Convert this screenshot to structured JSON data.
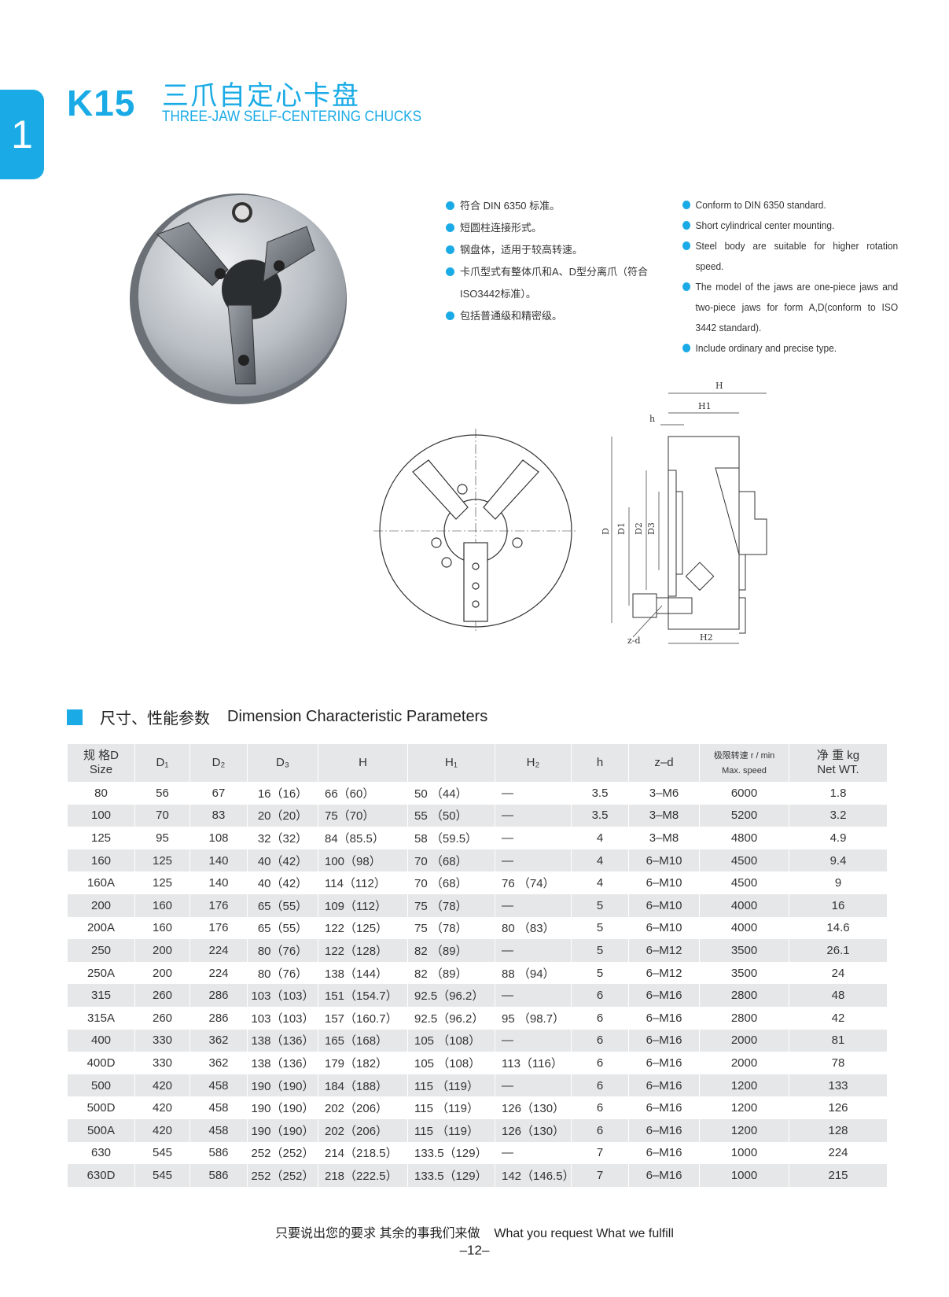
{
  "header": {
    "tab_number": "1",
    "model": "K15",
    "title_cn": "三爪自定心卡盘",
    "title_en": "THREE-JAW SELF-CENTERING CHUCKS"
  },
  "features_cn": [
    "符合 DIN 6350 标准。",
    "短圆柱连接形式。",
    "钢盘体，适用于较高转速。",
    "卡爪型式有整体爪和A、D型分离爪（符合ISO3442标准）。",
    "包括普通级和精密级。"
  ],
  "features_en": [
    "Conform to DIN 6350 standard.",
    "Short cylindrical center mounting.",
    "Steel body are suitable for higher rotation speed.",
    "The model of the jaws are one-piece jaws and two-piece jaws for form A,D(conform to ISO 3442 standard).",
    "Include ordinary and precise type."
  ],
  "drawing_labels": {
    "H": "H",
    "H1": "H1",
    "h": "h",
    "D": "D",
    "D1": "D1",
    "D2": "D2",
    "D3": "D3",
    "zd": "z-d",
    "H2": "H2"
  },
  "section": {
    "title_cn": "尺寸、性能参数",
    "title_en": "Dimension  Characteristic Parameters"
  },
  "table": {
    "headers": [
      {
        "top": "规 格D",
        "bottom": "Size"
      },
      {
        "top": "D₁"
      },
      {
        "top": "D₂"
      },
      {
        "top": "D₃"
      },
      {
        "top": "H"
      },
      {
        "top": "H₁"
      },
      {
        "top": "H₂"
      },
      {
        "top": "h"
      },
      {
        "top": "z–d"
      },
      {
        "top": "极限转速 r / min",
        "bottom": "Max. speed"
      },
      {
        "top": "净 重 kg",
        "bottom": "Net WT."
      }
    ],
    "rows": [
      [
        "80",
        "56",
        "67",
        "16（16）",
        "66（60）",
        "50 （44）",
        "—",
        "3.5",
        "3–M6",
        "6000",
        "1.8"
      ],
      [
        "100",
        "70",
        "83",
        "20（20）",
        "75（70）",
        "55 （50）",
        "—",
        "3.5",
        "3–M8",
        "5200",
        "3.2"
      ],
      [
        "125",
        "95",
        "108",
        "32（32）",
        "84（85.5）",
        "58 （59.5）",
        "—",
        "4",
        "3–M8",
        "4800",
        "4.9"
      ],
      [
        "160",
        "125",
        "140",
        "40（42）",
        "100（98）",
        "70 （68）",
        "—",
        "4",
        "6–M10",
        "4500",
        "9.4"
      ],
      [
        "160A",
        "125",
        "140",
        "40（42）",
        "114（112）",
        "70 （68）",
        "76 （74）",
        "4",
        "6–M10",
        "4500",
        "9"
      ],
      [
        "200",
        "160",
        "176",
        "65（55）",
        "109（112）",
        "75 （78）",
        "—",
        "5",
        "6–M10",
        "4000",
        "16"
      ],
      [
        "200A",
        "160",
        "176",
        "65（55）",
        "122（125）",
        "75 （78）",
        "80 （83）",
        "5",
        "6–M10",
        "4000",
        "14.6"
      ],
      [
        "250",
        "200",
        "224",
        "80（76）",
        "122（128）",
        "82 （89）",
        "—",
        "5",
        "6–M12",
        "3500",
        "26.1"
      ],
      [
        "250A",
        "200",
        "224",
        "80（76）",
        "138（144）",
        "82 （89）",
        "88 （94）",
        "5",
        "6–M12",
        "3500",
        "24"
      ],
      [
        "315",
        "260",
        "286",
        "103（103）",
        "151（154.7）",
        "92.5（96.2）",
        "—",
        "6",
        "6–M16",
        "2800",
        "48"
      ],
      [
        "315A",
        "260",
        "286",
        "103（103）",
        "157（160.7）",
        "92.5（96.2）",
        "95 （98.7）",
        "6",
        "6–M16",
        "2800",
        "42"
      ],
      [
        "400",
        "330",
        "362",
        "138（136）",
        "165（168）",
        "105 （108）",
        "—",
        "6",
        "6–M16",
        "2000",
        "81"
      ],
      [
        "400D",
        "330",
        "362",
        "138（136）",
        "179（182）",
        "105 （108）",
        "113（116）",
        "6",
        "6–M16",
        "2000",
        "78"
      ],
      [
        "500",
        "420",
        "458",
        "190（190）",
        "184（188）",
        "115 （119）",
        "—",
        "6",
        "6–M16",
        "1200",
        "133"
      ],
      [
        "500D",
        "420",
        "458",
        "190（190）",
        "202（206）",
        "115 （119）",
        "126（130）",
        "6",
        "6–M16",
        "1200",
        "126"
      ],
      [
        "500A",
        "420",
        "458",
        "190（190）",
        "202（206）",
        "115 （119）",
        "126（130）",
        "6",
        "6–M16",
        "1200",
        "128"
      ],
      [
        "630",
        "545",
        "586",
        "252（252）",
        "214（218.5）",
        "133.5（129）",
        "—",
        "7",
        "6–M16",
        "1000",
        "224"
      ],
      [
        "630D",
        "545",
        "586",
        "252（252）",
        "218（222.5）",
        "133.5（129）",
        "142（146.5）",
        "7",
        "6–M16",
        "1000",
        "215"
      ]
    ]
  },
  "footer": {
    "slogan_cn": "只要说出您的要求  其余的事我们来做",
    "slogan_en": "What you request  What we fulfill",
    "page": "–12–"
  },
  "colors": {
    "accent": "#1aabe6",
    "row_stripe": "#e6e7e8"
  }
}
